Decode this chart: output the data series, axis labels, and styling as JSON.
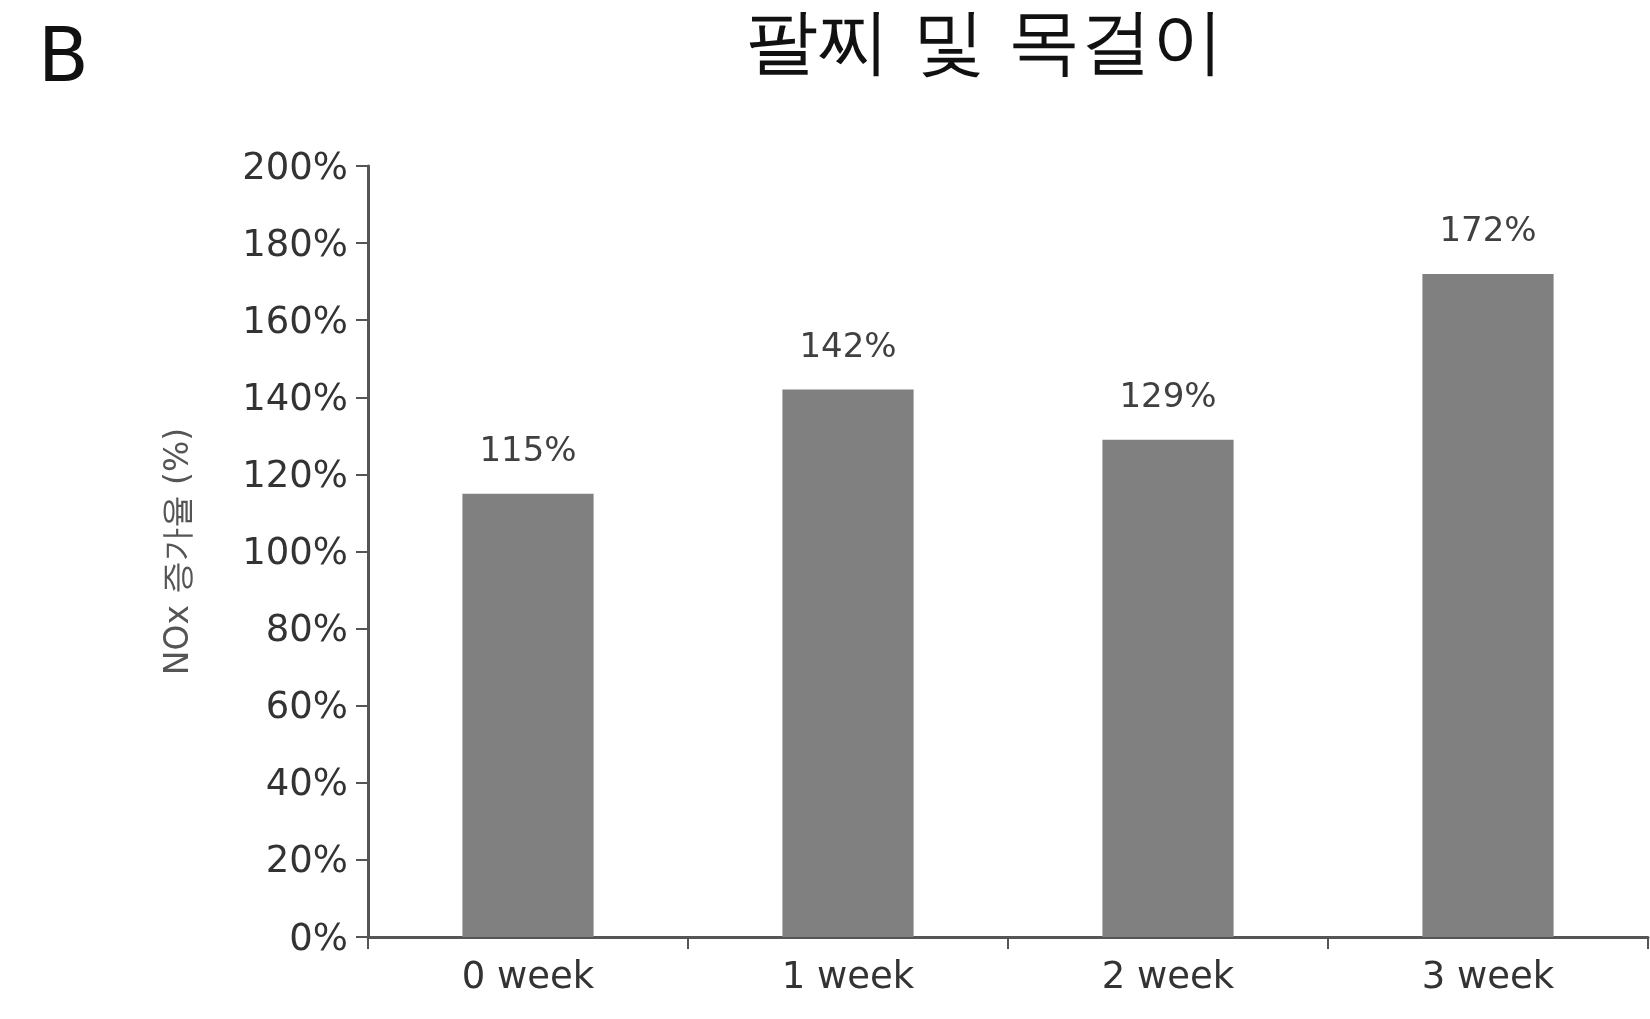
{
  "chart_data": {
    "type": "bar",
    "title": "팔찌 및 목걸이",
    "annotations": [
      "B"
    ],
    "ylabel": "NOx 증가율 (%)",
    "categories": [
      "0 week",
      "1 week",
      "2 week",
      "3 week"
    ],
    "values": [
      115,
      142,
      129,
      172
    ],
    "value_labels": [
      "115%",
      "142%",
      "129%",
      "172%"
    ],
    "color": "#808080",
    "ylim": [
      0,
      200
    ],
    "yticks": [
      {
        "value": 0,
        "label": "0%"
      },
      {
        "value": 20,
        "label": "20%"
      },
      {
        "value": 40,
        "label": "40%"
      },
      {
        "value": 60,
        "label": "60%"
      },
      {
        "value": 80,
        "label": "80%"
      },
      {
        "value": 100,
        "label": "100%"
      },
      {
        "value": 120,
        "label": "120%"
      },
      {
        "value": 140,
        "label": "140%"
      },
      {
        "value": 160,
        "label": "160%"
      },
      {
        "value": 180,
        "label": "180%"
      },
      {
        "value": 200,
        "label": "200%"
      }
    ],
    "grid": false
  }
}
